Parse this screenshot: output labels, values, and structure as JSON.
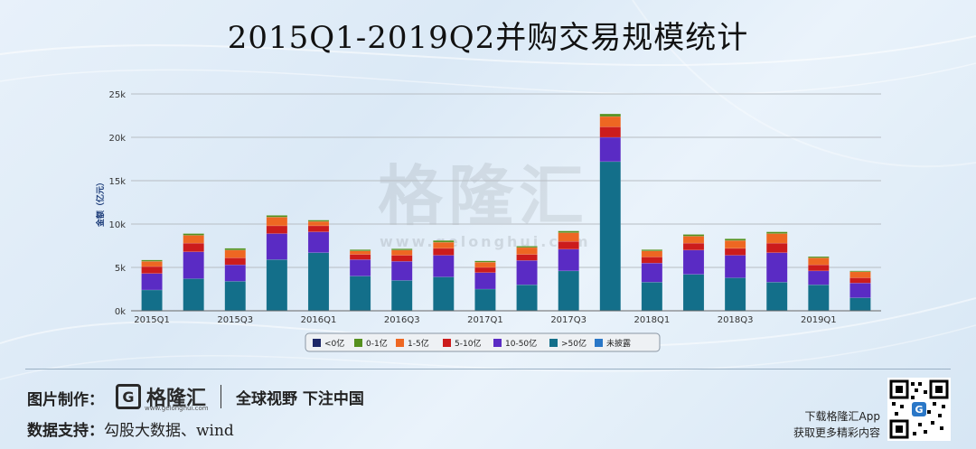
{
  "title": "2015Q1-2019Q2并购交易规模统计",
  "watermark": {
    "name": "格隆汇",
    "url": "www.gelonghui.com"
  },
  "chart_data": {
    "type": "bar",
    "stacked": true,
    "ylabel": "金额（亿元）",
    "ylim": [
      0,
      25000
    ],
    "yticks": [
      0,
      5000,
      10000,
      15000,
      20000,
      25000
    ],
    "ytick_labels": [
      "0k",
      "5k",
      "10k",
      "15k",
      "20k",
      "25k"
    ],
    "grid": true,
    "legend_position": "bottom",
    "categories": [
      "2015Q1",
      "2015Q2",
      "2015Q3",
      "2015Q4",
      "2016Q1",
      "2016Q2",
      "2016Q3",
      "2016Q4",
      "2017Q1",
      "2017Q2",
      "2017Q3",
      "2017Q4",
      "2018Q1",
      "2018Q2",
      "2018Q3",
      "2018Q4",
      "2019Q1",
      "2019Q2"
    ],
    "xtick_labels": [
      "2015Q1",
      "",
      "2015Q3",
      "",
      "2016Q1",
      "",
      "2016Q3",
      "",
      "2017Q1",
      "",
      "2017Q3",
      "",
      "2018Q1",
      "",
      "2018Q3",
      "",
      "2019Q1",
      ""
    ],
    "series": [
      {
        "name": ">50亿",
        "color": "#136f8a",
        "values": [
          2400,
          3700,
          3400,
          5900,
          6700,
          4000,
          3500,
          3900,
          2500,
          3000,
          4600,
          17200,
          3300,
          4200,
          3800,
          3300,
          3000,
          1500
        ]
      },
      {
        "name": "10-50亿",
        "color": "#5a2bc4",
        "values": [
          1900,
          3100,
          1900,
          3000,
          2400,
          1900,
          2200,
          2500,
          1900,
          2800,
          2500,
          2800,
          2200,
          2800,
          2600,
          3400,
          1600,
          1700
        ]
      },
      {
        "name": "5-10亿",
        "color": "#cc1c1c",
        "values": [
          800,
          1000,
          800,
          900,
          700,
          600,
          700,
          800,
          600,
          700,
          900,
          1200,
          700,
          800,
          800,
          1100,
          700,
          600
        ]
      },
      {
        "name": "1-5亿",
        "color": "#ee6722",
        "values": [
          600,
          900,
          900,
          1000,
          500,
          400,
          600,
          700,
          600,
          800,
          1000,
          1200,
          700,
          800,
          900,
          1100,
          800,
          700
        ]
      },
      {
        "name": "0-1亿",
        "color": "#55901e",
        "values": [
          150,
          200,
          200,
          200,
          150,
          150,
          150,
          200,
          150,
          150,
          200,
          300,
          150,
          200,
          200,
          200,
          150,
          100
        ]
      },
      {
        "name": "<0亿",
        "color": "#1c2766",
        "values": [
          0,
          0,
          0,
          0,
          0,
          0,
          0,
          0,
          0,
          0,
          0,
          0,
          0,
          0,
          0,
          0,
          0,
          0
        ]
      },
      {
        "name": "未披露",
        "color": "#2a77c7",
        "values": [
          0,
          0,
          0,
          0,
          0,
          0,
          0,
          0,
          0,
          0,
          0,
          0,
          0,
          0,
          0,
          0,
          0,
          0
        ]
      }
    ],
    "legend_order": [
      "<0亿",
      "0-1亿",
      "1-5亿",
      "5-10亿",
      "10-50亿",
      ">50亿",
      "未披露"
    ]
  },
  "footer": {
    "made_by_label": "图片制作：",
    "brand_logo_letter": "G",
    "brand_name": "格隆汇",
    "slogan": "全球视野 下注中国",
    "brand_url": "www.gelonghui.com",
    "data_support_label": "数据支持：",
    "data_support_value": "勾股大数据、wind",
    "app_line1": "下载格隆汇App",
    "app_line2": "获取更多精彩内容"
  }
}
